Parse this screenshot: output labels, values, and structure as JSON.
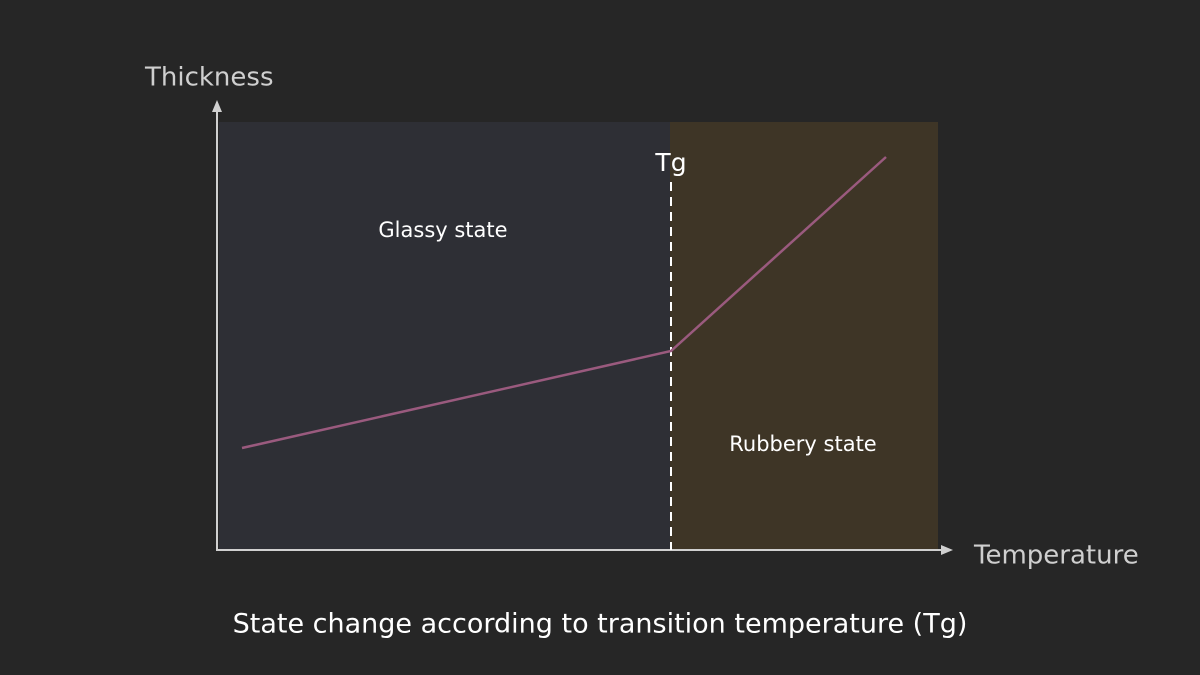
{
  "axes": {
    "y_label": "Thickness",
    "x_label": "Temperature"
  },
  "regions": [
    {
      "label": "Glassy state"
    },
    {
      "label": "Rubbery state"
    }
  ],
  "marker": {
    "label": "Tg"
  },
  "caption": "State change according to transition temperature (Tg)"
}
